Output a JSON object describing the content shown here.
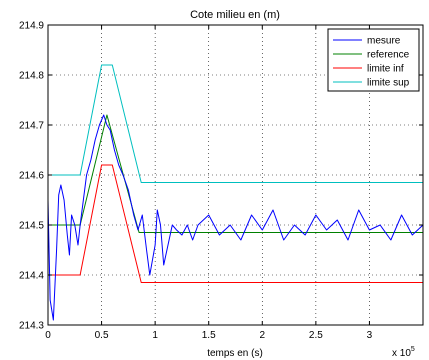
{
  "chart_data": {
    "type": "line",
    "title": "Cote milieu en (m)",
    "xlabel": "temps en (s)",
    "ylabel": "",
    "x_multiplier_label": "x 10",
    "x_multiplier_exponent": "5",
    "xlim": [
      0,
      3.5
    ],
    "ylim": [
      214.3,
      214.9
    ],
    "x_ticks": [
      0,
      0.5,
      1,
      1.5,
      2,
      2.5,
      3
    ],
    "x_tick_labels": [
      "0",
      "0.5",
      "1",
      "1.5",
      "2",
      "2.5",
      "3"
    ],
    "y_ticks": [
      214.3,
      214.4,
      214.5,
      214.6,
      214.7,
      214.8,
      214.9
    ],
    "y_tick_labels": [
      "214.3",
      "214.4",
      "214.5",
      "214.6",
      "214.7",
      "214.8",
      "214.9"
    ],
    "grid": true,
    "legend_position": "top-right",
    "series": [
      {
        "name": "mesure",
        "color": "#0000ff",
        "x": [
          0,
          0.02,
          0.05,
          0.08,
          0.1,
          0.12,
          0.15,
          0.18,
          0.2,
          0.22,
          0.25,
          0.28,
          0.3,
          0.33,
          0.36,
          0.4,
          0.44,
          0.48,
          0.52,
          0.55,
          0.58,
          0.62,
          0.66,
          0.7,
          0.75,
          0.8,
          0.84,
          0.88,
          0.92,
          0.95,
          1.0,
          1.02,
          1.05,
          1.08,
          1.12,
          1.16,
          1.2,
          1.25,
          1.3,
          1.35,
          1.4,
          1.5,
          1.6,
          1.7,
          1.8,
          1.9,
          2.0,
          2.1,
          2.2,
          2.3,
          2.4,
          2.5,
          2.6,
          2.7,
          2.8,
          2.9,
          3.0,
          3.1,
          3.2,
          3.3,
          3.4,
          3.5
        ],
        "y": [
          214.55,
          214.35,
          214.31,
          214.45,
          214.56,
          214.58,
          214.55,
          214.48,
          214.44,
          214.52,
          214.5,
          214.46,
          214.5,
          214.55,
          214.6,
          214.63,
          214.67,
          214.7,
          214.72,
          214.7,
          214.69,
          214.65,
          214.62,
          214.6,
          214.57,
          214.52,
          214.49,
          214.52,
          214.45,
          214.4,
          214.46,
          214.53,
          214.5,
          214.42,
          214.46,
          214.5,
          214.49,
          214.48,
          214.5,
          214.47,
          214.5,
          214.52,
          214.48,
          214.5,
          214.47,
          214.52,
          214.49,
          214.53,
          214.47,
          214.5,
          214.48,
          214.52,
          214.49,
          214.51,
          214.47,
          214.53,
          214.49,
          214.5,
          214.47,
          214.52,
          214.48,
          214.5
        ]
      },
      {
        "name": "reference",
        "color": "#008000",
        "x": [
          0,
          0.3,
          0.55,
          0.85,
          3.5
        ],
        "y": [
          214.5,
          214.5,
          214.72,
          214.485,
          214.485
        ]
      },
      {
        "name": "limite inf",
        "color": "#ff0000",
        "x": [
          0,
          0.3,
          0.5,
          0.6,
          0.87,
          3.5
        ],
        "y": [
          214.4,
          214.4,
          214.62,
          214.62,
          214.385,
          214.385
        ]
      },
      {
        "name": "limite sup",
        "color": "#00bfbf",
        "x": [
          0,
          0.3,
          0.5,
          0.6,
          0.87,
          3.5
        ],
        "y": [
          214.6,
          214.6,
          214.82,
          214.82,
          214.585,
          214.585
        ]
      }
    ]
  }
}
